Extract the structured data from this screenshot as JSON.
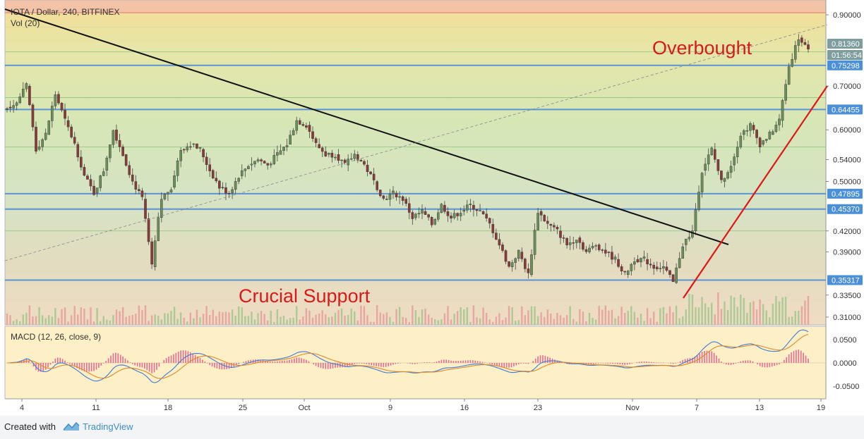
{
  "chart_data": {
    "type": "candlestick",
    "title": "IOTA / Dollar, 240, BITFINEX",
    "volume_label": "Vol (20)",
    "macd_label": "MACD (12, 26, close, 9)",
    "y_axis_labels": [
      "0.90000",
      "0.70000",
      "0.60000",
      "0.54000",
      "0.50000",
      "0.42000",
      "0.39000",
      "0.33500",
      "0.31000"
    ],
    "y_axis_markers": [
      {
        "value": "0.81360",
        "color": "#7e9e9e"
      },
      {
        "value": "01:56:54",
        "color": "#7e9e9e"
      },
      {
        "value": "0.75298",
        "color": "#4a8fd8"
      },
      {
        "value": "0.64455",
        "color": "#4a8fd8"
      },
      {
        "value": "0.47895",
        "color": "#4a8fd8"
      },
      {
        "value": "0.45370",
        "color": "#4a8fd8"
      },
      {
        "value": "0.35317",
        "color": "#4a8fd8"
      }
    ],
    "horizontal_levels": [
      0.75298,
      0.64455,
      0.47895,
      0.4537,
      0.35317
    ],
    "macd_axis_labels": [
      "0.0500",
      "0.0000",
      "-0.0500"
    ],
    "x_axis_labels": [
      "4",
      "11",
      "18",
      "25",
      "Oct",
      "9",
      "16",
      "23",
      "Nov",
      "7",
      "13",
      "19"
    ],
    "annotations": [
      "Overbought",
      "Crucial Support"
    ],
    "close_series": [
      0.65,
      0.66,
      0.7,
      0.56,
      0.59,
      0.68,
      0.62,
      0.57,
      0.51,
      0.48,
      0.52,
      0.6,
      0.55,
      0.5,
      0.47,
      0.37,
      0.47,
      0.49,
      0.56,
      0.57,
      0.56,
      0.52,
      0.49,
      0.48,
      0.51,
      0.53,
      0.54,
      0.53,
      0.55,
      0.57,
      0.62,
      0.61,
      0.57,
      0.55,
      0.55,
      0.53,
      0.55,
      0.53,
      0.5,
      0.47,
      0.48,
      0.47,
      0.44,
      0.45,
      0.43,
      0.46,
      0.44,
      0.45,
      0.46,
      0.45,
      0.43,
      0.4,
      0.37,
      0.39,
      0.36,
      0.45,
      0.43,
      0.42,
      0.4,
      0.41,
      0.39,
      0.4,
      0.39,
      0.38,
      0.36,
      0.38,
      0.38,
      0.37,
      0.37,
      0.35,
      0.4,
      0.42,
      0.52,
      0.56,
      0.5,
      0.53,
      0.59,
      0.61,
      0.57,
      0.59,
      0.62,
      0.75,
      0.83,
      0.79
    ],
    "colors": {
      "up": "#6b8e5a",
      "down": "#8b3a3a",
      "accent": "#e02020"
    }
  },
  "footer": {
    "created_with": "Created with",
    "brand": "TradingView"
  }
}
